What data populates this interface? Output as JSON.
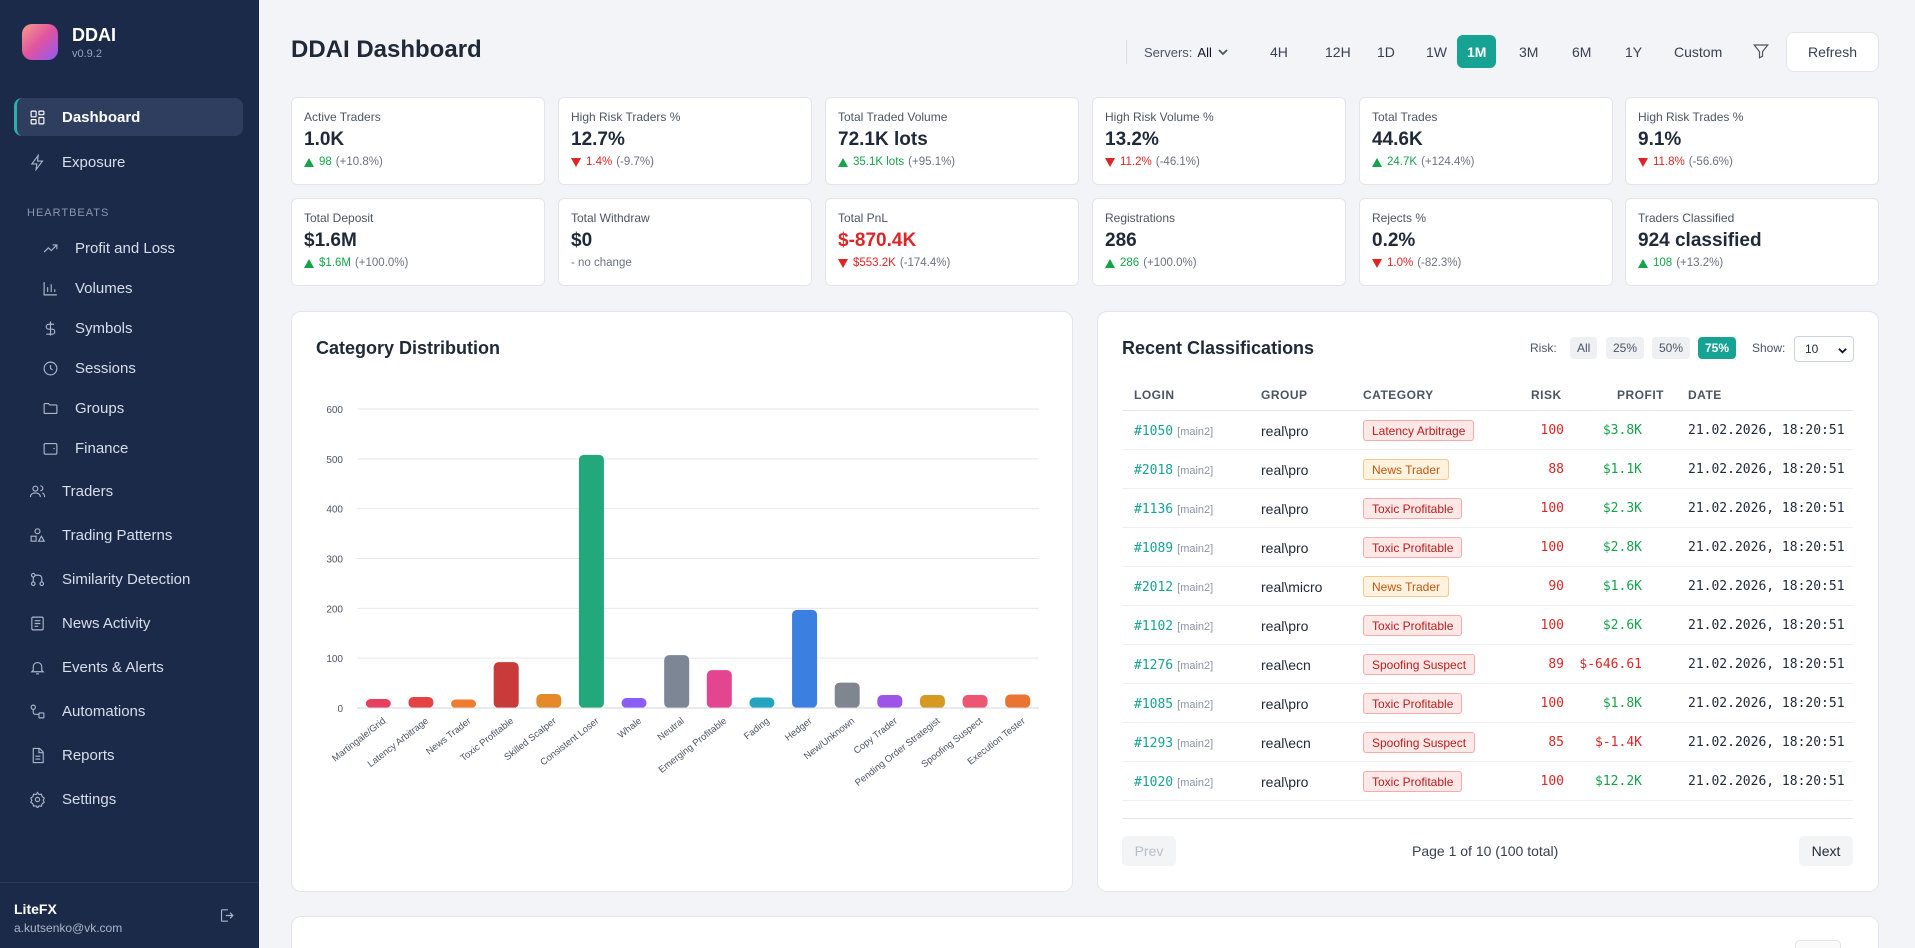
{
  "app": {
    "name": "DDAI",
    "version": "v0.9.2"
  },
  "sidebar": {
    "items": [
      {
        "label": "Dashboard",
        "icon": "dashboard-icon"
      },
      {
        "label": "Exposure",
        "icon": "bolt-icon"
      }
    ],
    "section_label": "HEARTBEATS",
    "heartbeats": [
      {
        "label": "Profit and Loss",
        "icon": "trend-icon"
      },
      {
        "label": "Volumes",
        "icon": "bar-chart-icon"
      },
      {
        "label": "Symbols",
        "icon": "dollar-icon"
      },
      {
        "label": "Sessions",
        "icon": "clock-icon"
      },
      {
        "label": "Groups",
        "icon": "folder-icon"
      },
      {
        "label": "Finance",
        "icon": "wallet-icon"
      }
    ],
    "more": [
      {
        "label": "Traders",
        "icon": "users-icon"
      },
      {
        "label": "Trading Patterns",
        "icon": "shapes-icon"
      },
      {
        "label": "Similarity Detection",
        "icon": "share-icon"
      },
      {
        "label": "News Activity",
        "icon": "newspaper-icon"
      },
      {
        "label": "Events & Alerts",
        "icon": "bell-icon"
      },
      {
        "label": "Automations",
        "icon": "workflow-icon"
      },
      {
        "label": "Reports",
        "icon": "file-icon"
      },
      {
        "label": "Settings",
        "icon": "gear-icon"
      }
    ],
    "user": {
      "name": "LiteFX",
      "email": "a.kutsenko@vk.com"
    }
  },
  "header": {
    "title": "DDAI Dashboard",
    "servers_label": "Servers:",
    "servers_value": "All",
    "timeframes": [
      "4H",
      "12H",
      "1D",
      "1W",
      "1M",
      "3M",
      "6M",
      "1Y",
      "Custom"
    ],
    "active_timeframe": "1M",
    "refresh_label": "Refresh"
  },
  "stats": [
    {
      "label": "Active Traders",
      "value": "1.0K",
      "dir": "up",
      "amount": "98",
      "pct": "(+10.8%)"
    },
    {
      "label": "High Risk Traders %",
      "value": "12.7%",
      "dir": "down",
      "amount": "1.4%",
      "pct": "(-9.7%)"
    },
    {
      "label": "Total Traded Volume",
      "value": "72.1K lots",
      "dir": "up",
      "amount": "35.1K lots",
      "pct": "(+95.1%)"
    },
    {
      "label": "High Risk Volume %",
      "value": "13.2%",
      "dir": "down",
      "amount": "11.2%",
      "pct": "(-46.1%)"
    },
    {
      "label": "Total Trades",
      "value": "44.6K",
      "dir": "up",
      "amount": "24.7K",
      "pct": "(+124.4%)"
    },
    {
      "label": "High Risk Trades %",
      "value": "9.1%",
      "dir": "down",
      "amount": "11.8%",
      "pct": "(-56.6%)"
    },
    {
      "label": "Total Deposit",
      "value": "$1.6M",
      "dir": "up",
      "amount": "$1.6M",
      "pct": "(+100.0%)"
    },
    {
      "label": "Total Withdraw",
      "value": "$0",
      "dir": "none",
      "amount": "",
      "pct": "- no change"
    },
    {
      "label": "Total PnL",
      "value": "$-870.4K",
      "dir": "down",
      "amount": "$553.2K",
      "pct": "(-174.4%)",
      "negative": true
    },
    {
      "label": "Registrations",
      "value": "286",
      "dir": "up",
      "amount": "286",
      "pct": "(+100.0%)"
    },
    {
      "label": "Rejects %",
      "value": "0.2%",
      "dir": "down",
      "amount": "1.0%",
      "pct": "(-82.3%)"
    },
    {
      "label": "Traders Classified",
      "value": "924 classified",
      "dir": "up",
      "amount": "108",
      "pct": "(+13.2%)"
    }
  ],
  "category_panel": {
    "title": "Category Distribution"
  },
  "chart_data": {
    "type": "bar",
    "title": "Category Distribution",
    "categories": [
      "Martingale/Grid",
      "Latency Arbitrage",
      "News Trader",
      "Toxic Profitable",
      "Skilled Scalper",
      "Consistent Loser",
      "Whale",
      "Neutral",
      "Emerging Profitable",
      "Fading",
      "Hedger",
      "New/Unknown",
      "Copy Trader",
      "Pending Order Strategist",
      "Spoofing Suspect",
      "Execution Tester"
    ],
    "values": [
      18,
      22,
      17,
      92,
      28,
      508,
      20,
      106,
      76,
      21,
      197,
      51,
      26,
      26,
      26,
      27
    ],
    "colors": [
      "#e83e5f",
      "#e54343",
      "#ef7b2e",
      "#c93b3b",
      "#e6892b",
      "#22a87a",
      "#8b5cf6",
      "#7c8694",
      "#e3468f",
      "#23a5c2",
      "#3b7fe0",
      "#7f8690",
      "#9c55e8",
      "#d69a22",
      "#ee5573",
      "#ec7433"
    ],
    "ylim": [
      0,
      600
    ],
    "yticks": [
      0,
      100,
      200,
      300,
      400,
      500,
      600
    ],
    "grid": true,
    "legend": "none"
  },
  "recent": {
    "title": "Recent Classifications",
    "risk_label": "Risk:",
    "risk_options": [
      "All",
      "25%",
      "50%",
      "75%"
    ],
    "active_risk": "75%",
    "show_label": "Show:",
    "show_value": "10",
    "columns": [
      "LOGIN",
      "GROUP",
      "CATEGORY",
      "RISK",
      "PROFIT",
      "DATE"
    ],
    "rows": [
      {
        "login": "#1050",
        "server": "[main2]",
        "group": "real\\pro",
        "category": "Latency Arbitrage",
        "cat_style": "red",
        "risk": "100",
        "profit": "$3.8K",
        "profit_sign": "pos",
        "date": "21.02.2026, 18:20:51"
      },
      {
        "login": "#2018",
        "server": "[main2]",
        "group": "real\\pro",
        "category": "News Trader",
        "cat_style": "orange",
        "risk": "88",
        "profit": "$1.1K",
        "profit_sign": "pos",
        "date": "21.02.2026, 18:20:51"
      },
      {
        "login": "#1136",
        "server": "[main2]",
        "group": "real\\pro",
        "category": "Toxic Profitable",
        "cat_style": "red",
        "risk": "100",
        "profit": "$2.3K",
        "profit_sign": "pos",
        "date": "21.02.2026, 18:20:51"
      },
      {
        "login": "#1089",
        "server": "[main2]",
        "group": "real\\pro",
        "category": "Toxic Profitable",
        "cat_style": "red",
        "risk": "100",
        "profit": "$2.8K",
        "profit_sign": "pos",
        "date": "21.02.2026, 18:20:51"
      },
      {
        "login": "#2012",
        "server": "[main2]",
        "group": "real\\micro",
        "category": "News Trader",
        "cat_style": "orange",
        "risk": "90",
        "profit": "$1.6K",
        "profit_sign": "pos",
        "date": "21.02.2026, 18:20:51"
      },
      {
        "login": "#1102",
        "server": "[main2]",
        "group": "real\\pro",
        "category": "Toxic Profitable",
        "cat_style": "red",
        "risk": "100",
        "profit": "$2.6K",
        "profit_sign": "pos",
        "date": "21.02.2026, 18:20:51"
      },
      {
        "login": "#1276",
        "server": "[main2]",
        "group": "real\\ecn",
        "category": "Spoofing Suspect",
        "cat_style": "red",
        "risk": "89",
        "profit": "$-646.61",
        "profit_sign": "neg",
        "date": "21.02.2026, 18:20:51"
      },
      {
        "login": "#1085",
        "server": "[main2]",
        "group": "real\\pro",
        "category": "Toxic Profitable",
        "cat_style": "red",
        "risk": "100",
        "profit": "$1.8K",
        "profit_sign": "pos",
        "date": "21.02.2026, 18:20:51"
      },
      {
        "login": "#1293",
        "server": "[main2]",
        "group": "real\\ecn",
        "category": "Spoofing Suspect",
        "cat_style": "red",
        "risk": "85",
        "profit": "$-1.4K",
        "profit_sign": "neg",
        "date": "21.02.2026, 18:20:51"
      },
      {
        "login": "#1020",
        "server": "[main2]",
        "group": "real\\pro",
        "category": "Toxic Profitable",
        "cat_style": "red",
        "risk": "100",
        "profit": "$12.2K",
        "profit_sign": "pos",
        "date": "21.02.2026, 18:20:51"
      }
    ],
    "prev_label": "Prev",
    "next_label": "Next",
    "page_info": "Page 1 of 10 (100 total)"
  }
}
